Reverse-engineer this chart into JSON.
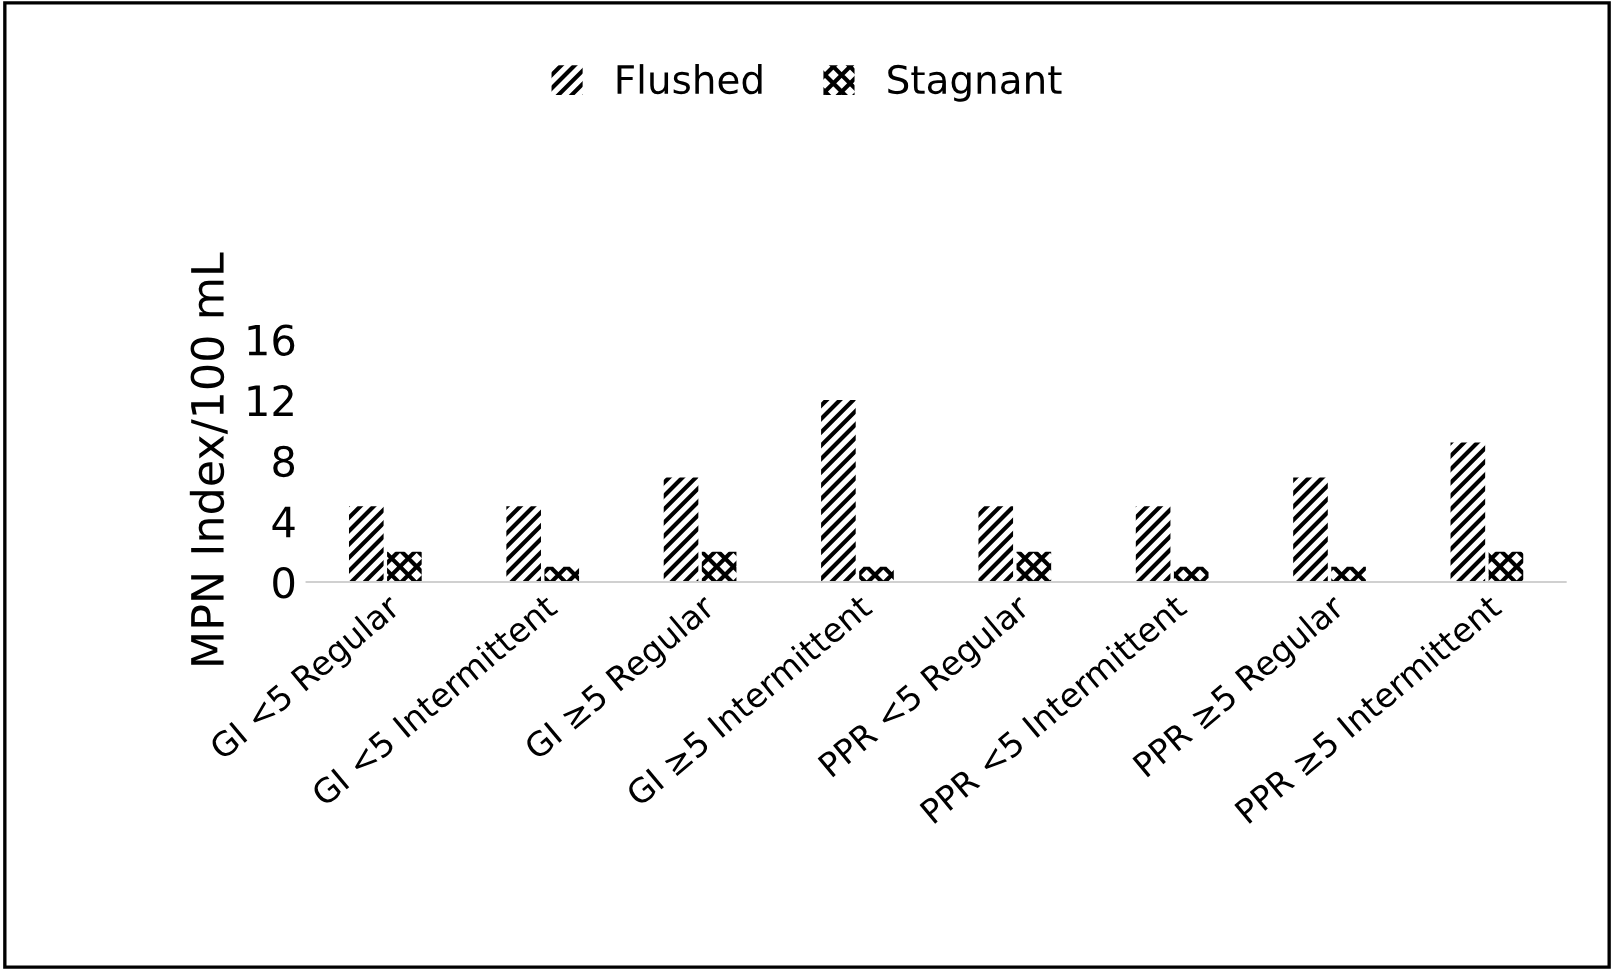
{
  "chart_data": {
    "type": "bar",
    "ylabel": "MPN Index/100 mL",
    "categories": [
      "GI <5 Regular",
      "GI <5 Intermittent",
      "GI ≥5 Regular",
      "GI ≥5 Intermittent",
      "PPR <5 Regular",
      "PPR <5 Intermittent",
      "PPR ≥5 Regular",
      "PPR ≥5 Intermittent"
    ],
    "series": [
      {
        "name": "Flushed",
        "color": "#000000",
        "values": [
          5,
          5,
          6.9,
          12,
          5,
          5,
          6.9,
          9.2
        ]
      },
      {
        "name": "Stagnant",
        "color": "#000000",
        "values": [
          2,
          1,
          2,
          1,
          2,
          1,
          1,
          2
        ]
      }
    ],
    "ylim": [
      0,
      16
    ],
    "yticks": [
      0,
      4,
      8,
      12,
      16
    ],
    "grid": false,
    "legend": "top"
  }
}
